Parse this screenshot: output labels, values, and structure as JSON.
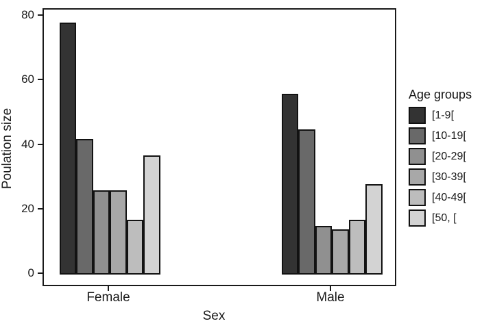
{
  "chart_data": {
    "type": "bar",
    "title": "",
    "xlabel": "Sex",
    "ylabel": "Poulation size",
    "categories": [
      "Female",
      "Male"
    ],
    "legend_title": "Age groups",
    "legend_position": "right",
    "grid": false,
    "y_ticks": [
      0,
      20,
      40,
      60,
      80
    ],
    "ylim": [
      0,
      82
    ],
    "bar_outline_color": "#121212",
    "series": [
      {
        "name": "[1-9[",
        "color": "#333333",
        "values": [
          78,
          56
        ]
      },
      {
        "name": "[10-19[",
        "color": "#696969",
        "values": [
          42,
          45
        ]
      },
      {
        "name": "[20-29[",
        "color": "#909090",
        "values": [
          26,
          15
        ]
      },
      {
        "name": "[30-39[",
        "color": "#a8a8a8",
        "values": [
          26,
          14
        ]
      },
      {
        "name": "[40-49[",
        "color": "#bdbdbd",
        "values": [
          17,
          17
        ]
      },
      {
        "name": "[50, [",
        "color": "#d3d3d3",
        "values": [
          37,
          28
        ]
      }
    ]
  }
}
